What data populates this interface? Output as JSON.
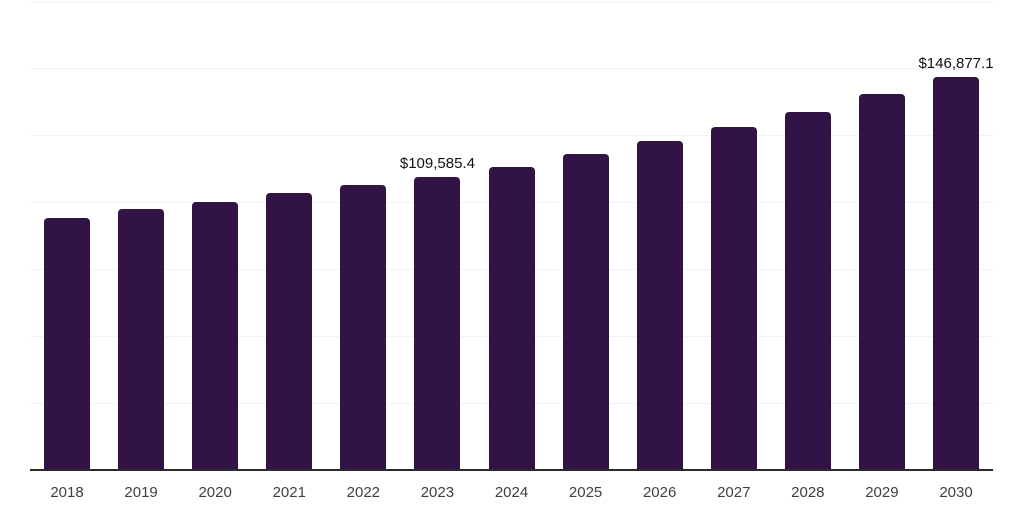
{
  "colors": {
    "background": "#ffffff",
    "bar": "#311345",
    "gridline": "#f2f2f2",
    "axis_line": "#2b2b2b",
    "tick_label": "#3f3f3f",
    "value_label": "#111111"
  },
  "chart_data": {
    "type": "bar",
    "title": "",
    "xlabel": "",
    "ylabel": "",
    "categories": [
      "2018",
      "2019",
      "2020",
      "2021",
      "2022",
      "2023",
      "2024",
      "2025",
      "2026",
      "2027",
      "2028",
      "2029",
      "2030"
    ],
    "values": [
      94200,
      97700,
      100200,
      103500,
      106700,
      109585.4,
      113400,
      118100,
      123000,
      128100,
      133900,
      140700,
      146877.1
    ],
    "value_labels": [
      {
        "index": 5,
        "text": "$109,585.4"
      },
      {
        "index": 12,
        "text": "$146,877.1"
      }
    ],
    "ylim": [
      0,
      175000
    ],
    "gridline_step": 25000,
    "grid": true,
    "legend": false,
    "y_axis_labels_visible": false
  }
}
